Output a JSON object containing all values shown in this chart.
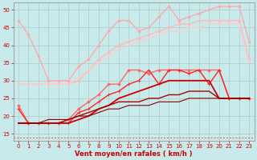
{
  "title": "",
  "xlabel": "Vent moyen/en rafales ( km/h )",
  "ylabel": "",
  "xlim": [
    -0.5,
    23.5
  ],
  "ylim": [
    13,
    52
  ],
  "yticks": [
    15,
    20,
    25,
    30,
    35,
    40,
    45,
    50
  ],
  "xticks": [
    0,
    1,
    2,
    3,
    4,
    5,
    6,
    7,
    8,
    9,
    10,
    11,
    12,
    13,
    14,
    15,
    16,
    17,
    18,
    19,
    20,
    21,
    22,
    23
  ],
  "bg_color": "#c8eaea",
  "grid_color": "#aacccc",
  "lines": [
    {
      "x": [
        0,
        1,
        2,
        3,
        4,
        5,
        6,
        7,
        8,
        9,
        10,
        11,
        12,
        13,
        14,
        15,
        16,
        17,
        18,
        19,
        20,
        21,
        22,
        23
      ],
      "y": [
        47,
        43,
        37,
        30,
        30,
        30,
        34,
        36,
        40,
        44,
        47,
        47,
        44,
        45,
        48,
        51,
        47,
        48,
        49,
        50,
        51,
        51,
        51,
        41
      ],
      "color": "#ffaaaa",
      "marker": "D",
      "markersize": 1.8,
      "linewidth": 1.0
    },
    {
      "x": [
        0,
        1,
        2,
        3,
        4,
        5,
        6,
        7,
        8,
        9,
        10,
        11,
        12,
        13,
        14,
        15,
        16,
        17,
        18,
        19,
        20,
        21,
        22,
        23
      ],
      "y": [
        29,
        29,
        29,
        29,
        29,
        29,
        30,
        33,
        36,
        38,
        40,
        41,
        42,
        43,
        44,
        45,
        46,
        46,
        47,
        47,
        47,
        47,
        47,
        36
      ],
      "color": "#ffbbbb",
      "marker": "D",
      "markersize": 1.8,
      "linewidth": 1.0
    },
    {
      "x": [
        0,
        1,
        2,
        3,
        4,
        5,
        6,
        7,
        8,
        9,
        10,
        11,
        12,
        13,
        14,
        15,
        16,
        17,
        18,
        19,
        20,
        21,
        22,
        23
      ],
      "y": [
        29,
        29,
        29,
        29,
        29,
        29,
        31,
        33,
        35,
        37,
        39,
        40,
        41,
        42,
        43,
        44,
        44,
        45,
        45,
        46,
        46,
        46,
        46,
        35
      ],
      "color": "#ffcccc",
      "marker": "None",
      "markersize": 0,
      "linewidth": 1.0
    },
    {
      "x": [
        0,
        1,
        2,
        3,
        4,
        5,
        6,
        7,
        8,
        9,
        10,
        11,
        12,
        13,
        14,
        15,
        16,
        17,
        18,
        19,
        20,
        21,
        22,
        23
      ],
      "y": [
        23,
        18,
        18,
        18,
        18,
        19,
        22,
        24,
        26,
        29,
        29,
        33,
        33,
        32,
        33,
        33,
        33,
        33,
        33,
        33,
        33,
        25,
        25,
        25
      ],
      "color": "#ff6666",
      "marker": "D",
      "markersize": 1.8,
      "linewidth": 1.0
    },
    {
      "x": [
        0,
        1,
        2,
        3,
        4,
        5,
        6,
        7,
        8,
        9,
        10,
        11,
        12,
        13,
        14,
        15,
        16,
        17,
        18,
        19,
        20,
        21,
        22,
        23
      ],
      "y": [
        22,
        18,
        18,
        18,
        18,
        18,
        21,
        22,
        24,
        26,
        27,
        29,
        30,
        33,
        29,
        33,
        33,
        32,
        33,
        29,
        33,
        25,
        25,
        25
      ],
      "color": "#ff2222",
      "marker": "+",
      "markersize": 3.5,
      "linewidth": 1.0
    },
    {
      "x": [
        0,
        1,
        2,
        3,
        4,
        5,
        6,
        7,
        8,
        9,
        10,
        11,
        12,
        13,
        14,
        15,
        16,
        17,
        18,
        19,
        20,
        21,
        22,
        23
      ],
      "y": [
        18,
        18,
        18,
        18,
        18,
        18,
        19,
        20,
        22,
        23,
        25,
        26,
        27,
        28,
        29,
        30,
        30,
        30,
        30,
        30,
        25,
        25,
        25,
        25
      ],
      "color": "#cc0000",
      "marker": "None",
      "markersize": 0,
      "linewidth": 1.3
    },
    {
      "x": [
        0,
        1,
        2,
        3,
        4,
        5,
        6,
        7,
        8,
        9,
        10,
        11,
        12,
        13,
        14,
        15,
        16,
        17,
        18,
        19,
        20,
        21,
        22,
        23
      ],
      "y": [
        18,
        18,
        18,
        18,
        18,
        19,
        20,
        21,
        22,
        23,
        24,
        24,
        24,
        25,
        25,
        26,
        26,
        27,
        27,
        27,
        25,
        25,
        25,
        25
      ],
      "color": "#aa0000",
      "marker": "None",
      "markersize": 0,
      "linewidth": 1.0
    },
    {
      "x": [
        0,
        1,
        2,
        3,
        4,
        5,
        6,
        7,
        8,
        9,
        10,
        11,
        12,
        13,
        14,
        15,
        16,
        17,
        18,
        19,
        20,
        21,
        22,
        23
      ],
      "y": [
        18,
        18,
        18,
        19,
        19,
        19,
        20,
        20,
        21,
        22,
        22,
        23,
        23,
        23,
        24,
        24,
        24,
        25,
        25,
        25,
        25,
        25,
        25,
        25
      ],
      "color": "#880000",
      "marker": "None",
      "markersize": 0,
      "linewidth": 0.8
    }
  ],
  "dashed_y": 13.8,
  "dashed_color": "#ff4444"
}
